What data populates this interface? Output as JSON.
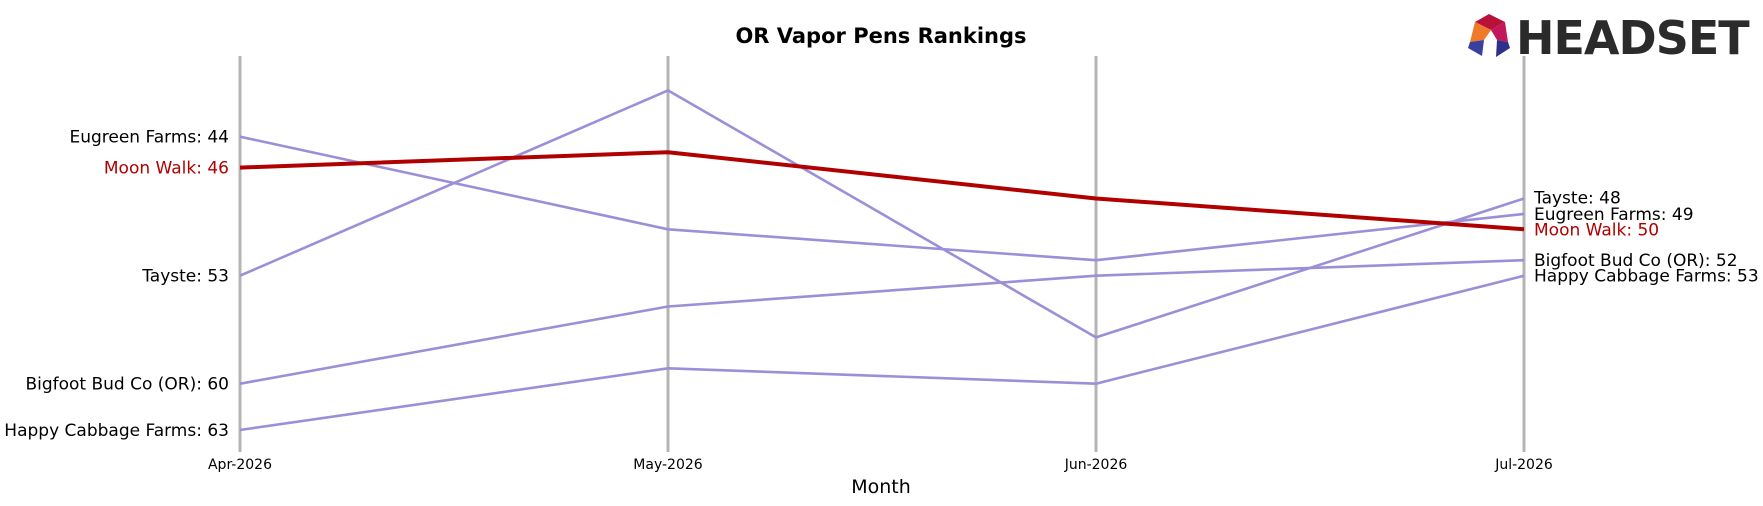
{
  "chart_data": {
    "type": "line",
    "title": "OR Vapor Pens Rankings",
    "xlabel": "Month",
    "ylabel": "",
    "x": [
      "Apr-2026",
      "May-2026",
      "Jun-2026",
      "Jul-2026"
    ],
    "y_inverted": true,
    "ylim": [
      40,
      63
    ],
    "grid": "vertical lines at each month",
    "legend": "none; series labeled at left and right ends",
    "highlight_color": "#b00000",
    "series_color": "#9b8fd8",
    "series": [
      {
        "name": "Eugreen Farms",
        "values": [
          44,
          50,
          52,
          49
        ],
        "highlight": false,
        "start_label": "Eugreen Farms: 44",
        "end_label": "Eugreen Farms: 49"
      },
      {
        "name": "Tayste",
        "values": [
          53,
          41,
          57,
          48
        ],
        "highlight": false,
        "start_label": "Tayste: 53",
        "end_label": "Tayste: 48"
      },
      {
        "name": "Bigfoot Bud Co (OR)",
        "values": [
          60,
          55,
          53,
          52
        ],
        "highlight": false,
        "start_label": "Bigfoot Bud Co (OR): 60",
        "end_label": "Bigfoot Bud Co (OR): 52"
      },
      {
        "name": "Happy Cabbage Farms",
        "values": [
          63,
          59,
          60,
          53
        ],
        "highlight": false,
        "start_label": "Happy Cabbage Farms: 63",
        "end_label": "Happy Cabbage Farms: 53"
      },
      {
        "name": "Moon Walk",
        "values": [
          46,
          45,
          48,
          50
        ],
        "highlight": true,
        "start_label": "Moon Walk: 46",
        "end_label": "Moon Walk: 50"
      }
    ]
  },
  "logo": {
    "text": "HEADSET",
    "icon": "headset-hexagon-logo-icon"
  }
}
